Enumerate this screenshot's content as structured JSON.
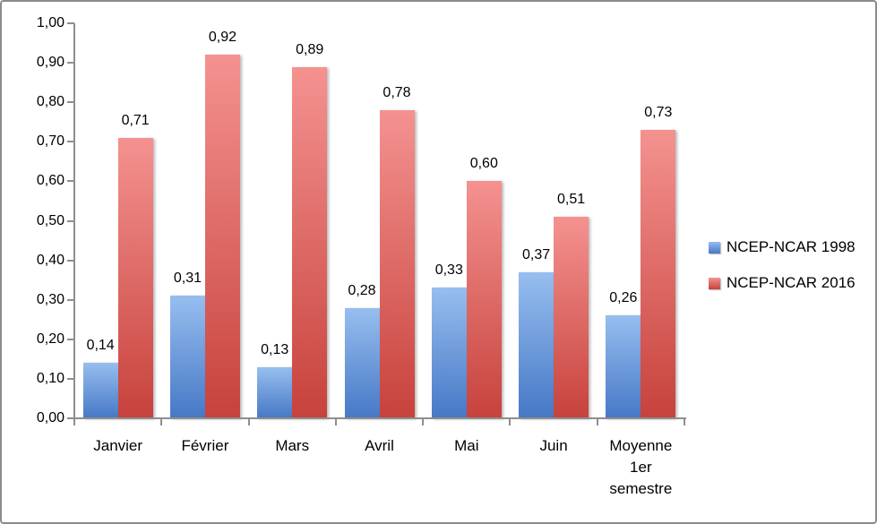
{
  "chart_data": {
    "type": "bar",
    "title": "",
    "xlabel": "",
    "ylabel": "",
    "number_format": "french-comma",
    "grid": false,
    "legend_position": "right",
    "axis_color": "#8e8e8e",
    "text_color": "#000000",
    "categories": [
      "Janvier",
      "Février",
      "Mars",
      "Avril",
      "Mai",
      "Juin",
      "Moyenne 1er semestre"
    ],
    "category_label_lines": [
      [
        "Janvier"
      ],
      [
        "Février"
      ],
      [
        "Mars"
      ],
      [
        "Avril"
      ],
      [
        "Mai"
      ],
      [
        "Juin"
      ],
      [
        "Moyenne",
        "1er",
        "semestre"
      ]
    ],
    "series": [
      {
        "name": "NCEP-NCAR 1998",
        "values": [
          0.14,
          0.31,
          0.13,
          0.28,
          0.33,
          0.37,
          0.26
        ],
        "value_labels": [
          "0,14",
          "0,31",
          "0,13",
          "0,28",
          "0,33",
          "0,37",
          "0,26"
        ],
        "gradient_top": "#97BEEF",
        "gradient_bottom": "#4678C6"
      },
      {
        "name": "NCEP-NCAR 2016",
        "values": [
          0.71,
          0.92,
          0.89,
          0.78,
          0.6,
          0.51,
          0.73
        ],
        "value_labels": [
          "0,71",
          "0,92",
          "0,89",
          "0,78",
          "0,60",
          "0,51",
          "0,73"
        ],
        "gradient_top": "#F49290",
        "gradient_bottom": "#C7423C"
      }
    ],
    "y_axis": {
      "min": 0,
      "max": 1,
      "step": 0.1,
      "tick_labels": [
        "0,00",
        "0,10",
        "0,20",
        "0,30",
        "0,40",
        "0,50",
        "0,60",
        "0,70",
        "0,80",
        "0,90",
        "1,00"
      ]
    }
  }
}
